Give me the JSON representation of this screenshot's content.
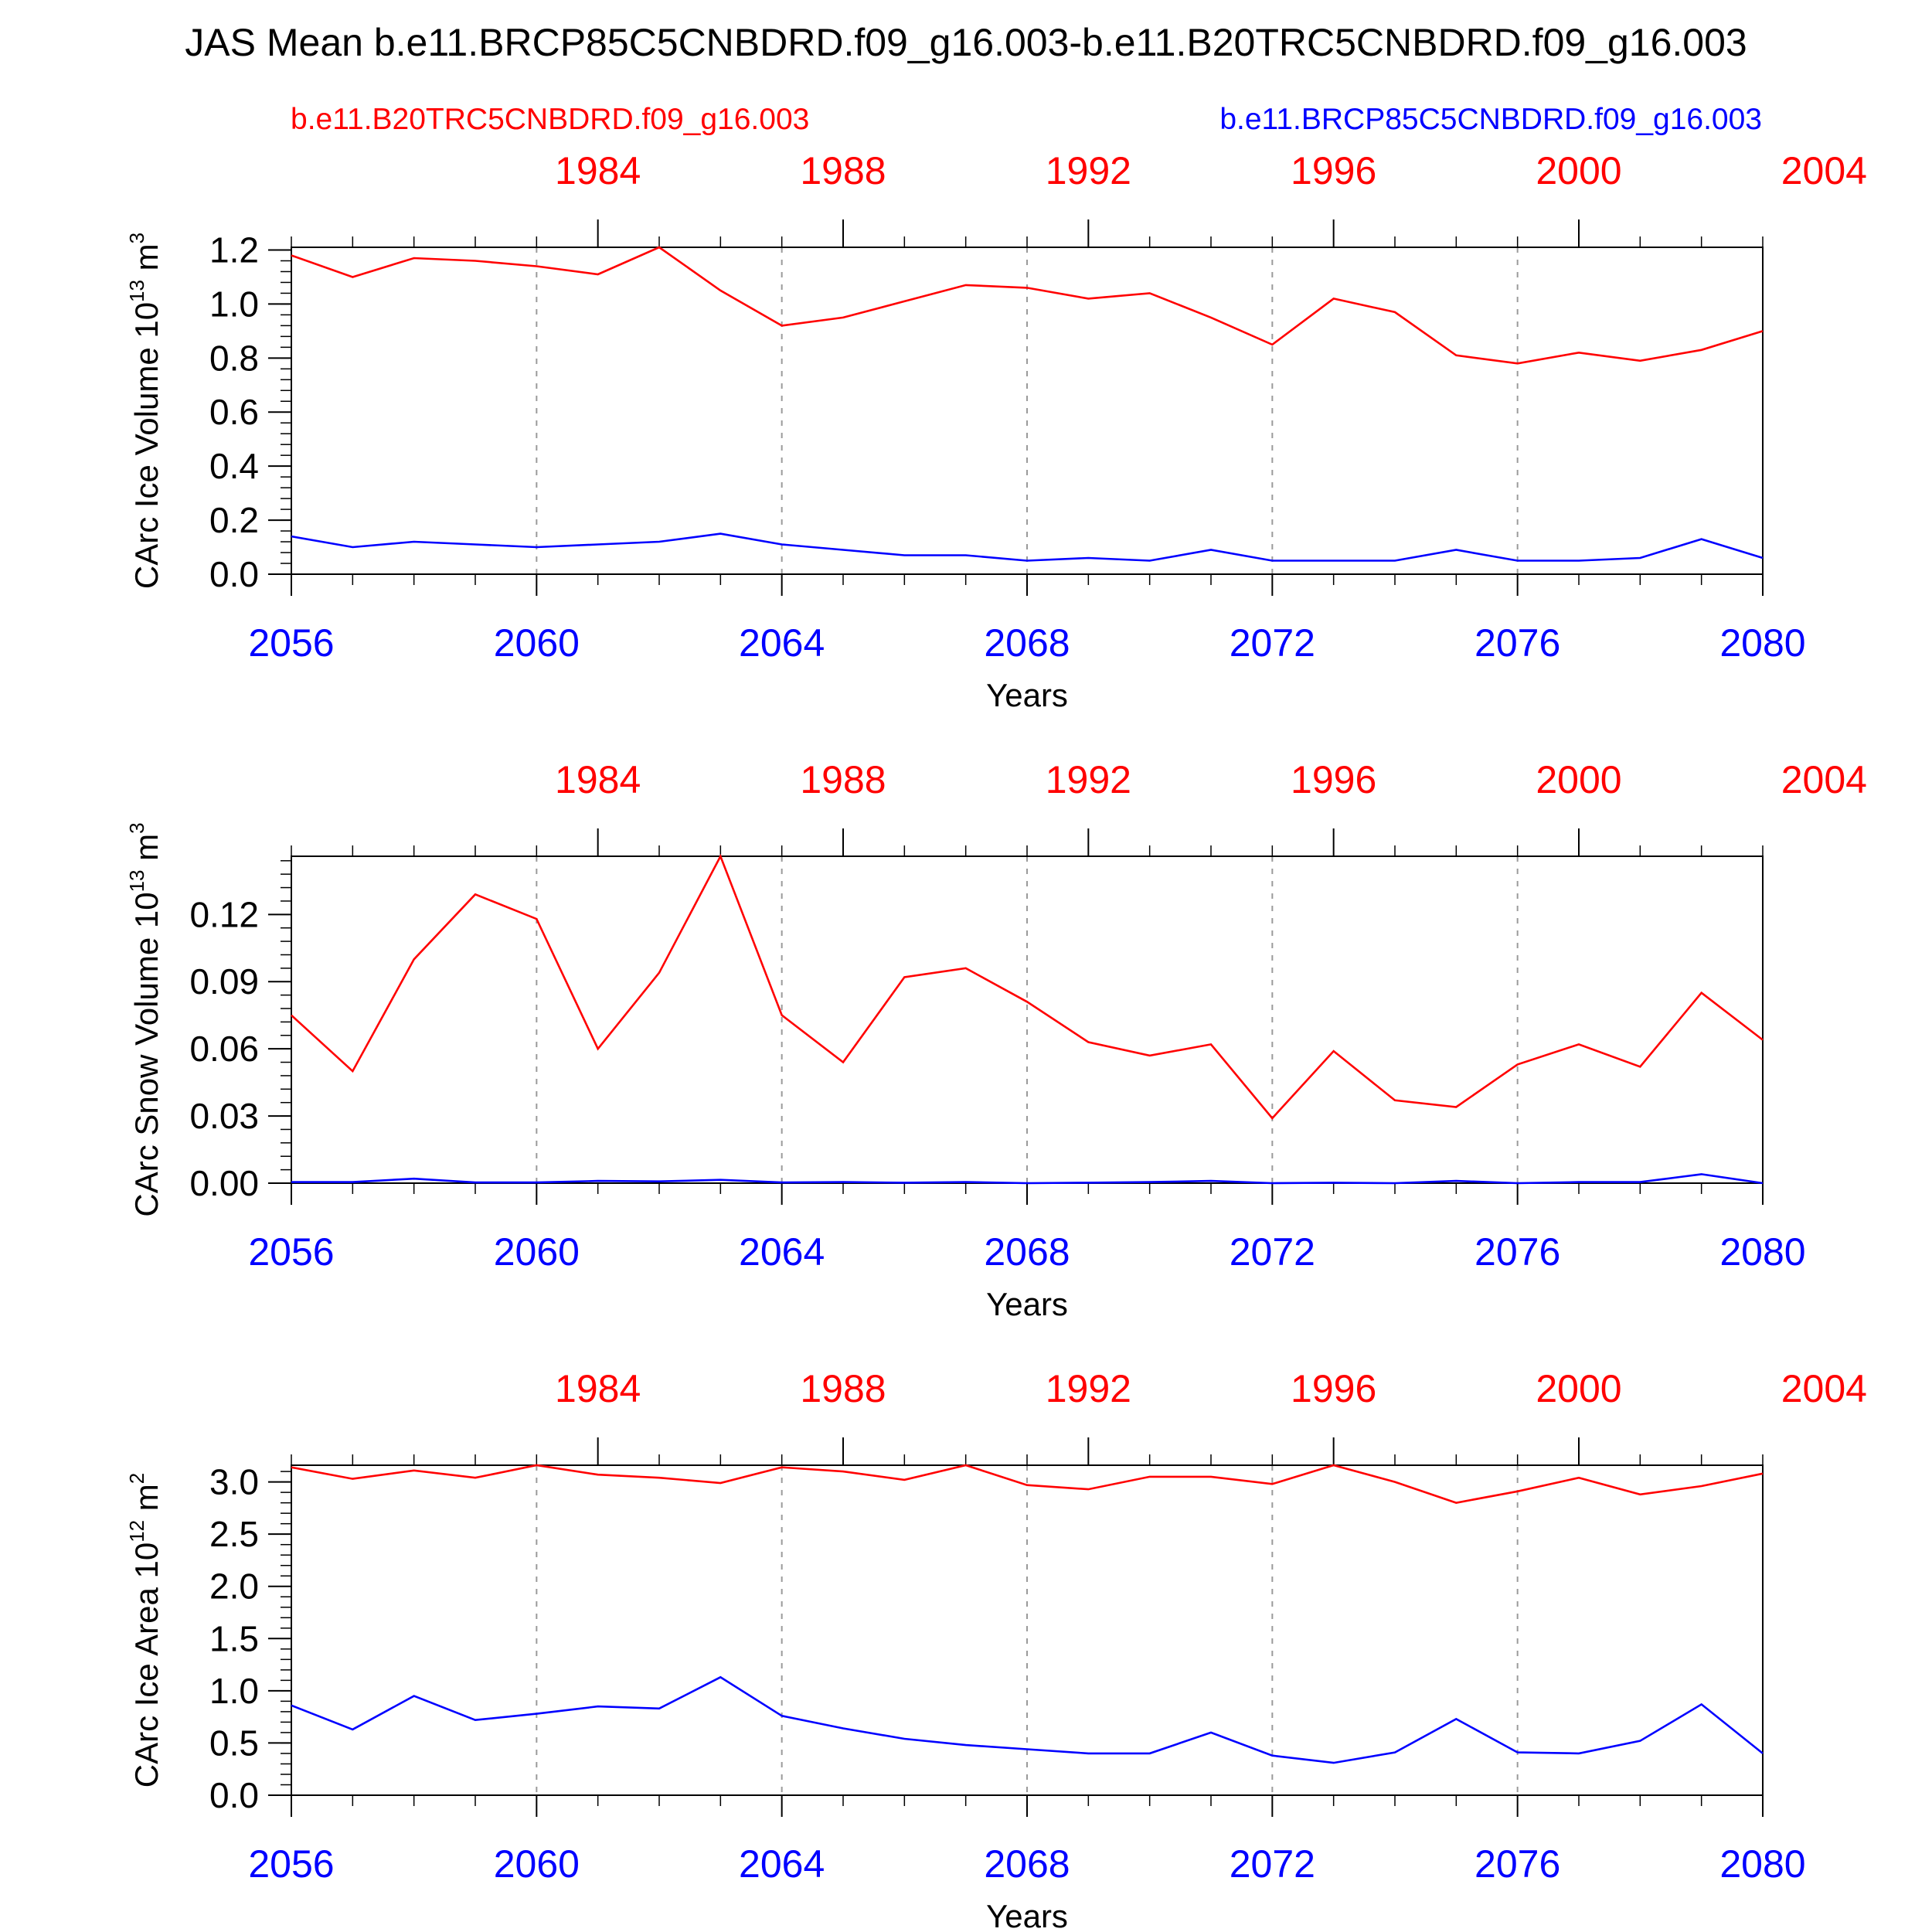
{
  "title": "JAS Mean b.e11.BRCP85C5CNBDRD.f09_g16.003-b.e11.B20TRC5CNBDRD.f09_g16.003",
  "legend": {
    "left": {
      "label": "b.e11.B20TRC5CNBDRD.f09_g16.003",
      "color": "#ff0000"
    },
    "right": {
      "label": "b.e11.BRCP85C5CNBDRD.f09_g16.003",
      "color": "#0000ff"
    }
  },
  "colors": {
    "red": "#ff0000",
    "blue": "#0000ff",
    "axis": "#000000",
    "grid": "#9a9a9a"
  },
  "chart_data": [
    {
      "type": "line",
      "ylabel": "CArc Ice Volume 10",
      "ylabel_exp": "13",
      "ylabel_unit": " m",
      "ylabel_unit_exp": "3",
      "xlabel": "Years",
      "xlim": [
        2056,
        2080
      ],
      "ylim": [
        0,
        1.21
      ],
      "yticks": [
        0.0,
        0.2,
        0.4,
        0.6,
        0.8,
        1.0,
        1.2
      ],
      "yticklabels": [
        "0.0",
        "0.2",
        "0.4",
        "0.6",
        "0.8",
        "1.0",
        "1.2"
      ],
      "yminor_step": 0.04,
      "bottom_ticks": [
        2056,
        2060,
        2064,
        2068,
        2072,
        2076,
        2080
      ],
      "bottom_ticklabels": [
        "2056",
        "2060",
        "2064",
        "2068",
        "2072",
        "2076",
        "2080"
      ],
      "top_ticks": [
        1984,
        1988,
        1992,
        1996,
        2000,
        2004
      ],
      "top_ticklabels": [
        "1984",
        "1988",
        "1992",
        "1996",
        "2000",
        "2004"
      ],
      "top_offset": 77,
      "grid_years": [
        2060,
        2064,
        2068,
        2072,
        2076
      ],
      "x": [
        2056,
        2057,
        2058,
        2059,
        2060,
        2061,
        2062,
        2063,
        2064,
        2065,
        2066,
        2067,
        2068,
        2069,
        2070,
        2071,
        2072,
        2073,
        2074,
        2075,
        2076,
        2077,
        2078,
        2079,
        2080
      ],
      "series": [
        {
          "name": "b.e11.B20TRC5CNBDRD.f09_g16.003",
          "color": "#ff0000",
          "values": [
            1.18,
            1.1,
            1.17,
            1.16,
            1.14,
            1.11,
            1.21,
            1.05,
            0.92,
            0.95,
            1.01,
            1.07,
            1.06,
            1.02,
            1.04,
            0.95,
            0.85,
            1.02,
            0.97,
            0.81,
            0.78,
            0.82,
            0.79,
            0.83,
            0.9
          ]
        },
        {
          "name": "b.e11.BRCP85C5CNBDRD.f09_g16.003",
          "color": "#0000ff",
          "values": [
            0.14,
            0.1,
            0.12,
            0.11,
            0.1,
            0.11,
            0.12,
            0.15,
            0.11,
            0.09,
            0.07,
            0.07,
            0.05,
            0.06,
            0.05,
            0.09,
            0.05,
            0.05,
            0.05,
            0.09,
            0.05,
            0.05,
            0.06,
            0.13,
            0.06
          ]
        }
      ]
    },
    {
      "type": "line",
      "ylabel": "CArc Snow Volume 10",
      "ylabel_exp": "13",
      "ylabel_unit": " m",
      "ylabel_unit_exp": "3",
      "xlabel": "Years",
      "xlim": [
        2056,
        2080
      ],
      "ylim": [
        0,
        0.146
      ],
      "yticks": [
        0.0,
        0.03,
        0.06,
        0.09,
        0.12
      ],
      "yticklabels": [
        "0.00",
        "0.03",
        "0.06",
        "0.09",
        "0.12"
      ],
      "yminor_step": 0.006,
      "bottom_ticks": [
        2056,
        2060,
        2064,
        2068,
        2072,
        2076,
        2080
      ],
      "bottom_ticklabels": [
        "2056",
        "2060",
        "2064",
        "2068",
        "2072",
        "2076",
        "2080"
      ],
      "top_ticks": [
        1984,
        1988,
        1992,
        1996,
        2000,
        2004
      ],
      "top_ticklabels": [
        "1984",
        "1988",
        "1992",
        "1996",
        "2000",
        "2004"
      ],
      "top_offset": 77,
      "grid_years": [
        2060,
        2064,
        2068,
        2072,
        2076
      ],
      "x": [
        2056,
        2057,
        2058,
        2059,
        2060,
        2061,
        2062,
        2063,
        2064,
        2065,
        2066,
        2067,
        2068,
        2069,
        2070,
        2071,
        2072,
        2073,
        2074,
        2075,
        2076,
        2077,
        2078,
        2079,
        2080
      ],
      "series": [
        {
          "name": "b.e11.B20TRC5CNBDRD.f09_g16.003",
          "color": "#ff0000",
          "values": [
            0.075,
            0.05,
            0.1,
            0.129,
            0.118,
            0.06,
            0.094,
            0.146,
            0.075,
            0.054,
            0.092,
            0.096,
            0.081,
            0.063,
            0.057,
            0.062,
            0.029,
            0.059,
            0.037,
            0.034,
            0.053,
            0.062,
            0.052,
            0.085,
            0.064
          ]
        },
        {
          "name": "b.e11.BRCP85C5CNBDRD.f09_g16.003",
          "color": "#0000ff",
          "values": [
            0.0005,
            0.0005,
            0.002,
            0.0003,
            0.0003,
            0.001,
            0.0008,
            0.0015,
            0.0003,
            0.0005,
            0.0002,
            0.0005,
            0.0,
            0.0002,
            0.0005,
            0.001,
            0.0,
            0.0002,
            0.0,
            0.001,
            0.0,
            0.0005,
            0.0005,
            0.004,
            0.0
          ]
        }
      ]
    },
    {
      "type": "line",
      "ylabel": "CArc Ice Area 10",
      "ylabel_exp": "12",
      "ylabel_unit": " m",
      "ylabel_unit_exp": "2",
      "xlabel": "Years",
      "xlim": [
        2056,
        2080
      ],
      "ylim": [
        0,
        3.16
      ],
      "yticks": [
        0.0,
        0.5,
        1.0,
        1.5,
        2.0,
        2.5,
        3.0
      ],
      "yticklabels": [
        "0.0",
        "0.5",
        "1.0",
        "1.5",
        "2.0",
        "2.5",
        "3.0"
      ],
      "yminor_step": 0.1,
      "bottom_ticks": [
        2056,
        2060,
        2064,
        2068,
        2072,
        2076,
        2080
      ],
      "bottom_ticklabels": [
        "2056",
        "2060",
        "2064",
        "2068",
        "2072",
        "2076",
        "2080"
      ],
      "top_ticks": [
        1984,
        1988,
        1992,
        1996,
        2000,
        2004
      ],
      "top_ticklabels": [
        "1984",
        "1988",
        "1992",
        "1996",
        "2000",
        "2004"
      ],
      "top_offset": 77,
      "grid_years": [
        2060,
        2064,
        2068,
        2072,
        2076
      ],
      "x": [
        2056,
        2057,
        2058,
        2059,
        2060,
        2061,
        2062,
        2063,
        2064,
        2065,
        2066,
        2067,
        2068,
        2069,
        2070,
        2071,
        2072,
        2073,
        2074,
        2075,
        2076,
        2077,
        2078,
        2079,
        2080
      ],
      "series": [
        {
          "name": "b.e11.B20TRC5CNBDRD.f09_g16.003",
          "color": "#ff0000",
          "values": [
            3.14,
            3.03,
            3.11,
            3.04,
            3.16,
            3.07,
            3.04,
            2.99,
            3.14,
            3.1,
            3.02,
            3.16,
            2.97,
            2.93,
            3.05,
            3.05,
            2.98,
            3.16,
            3.0,
            2.8,
            2.91,
            3.04,
            2.88,
            2.96,
            3.08
          ]
        },
        {
          "name": "b.e11.BRCP85C5CNBDRD.f09_g16.003",
          "color": "#0000ff",
          "values": [
            0.86,
            0.63,
            0.95,
            0.72,
            0.78,
            0.85,
            0.83,
            1.13,
            0.76,
            0.64,
            0.54,
            0.48,
            0.44,
            0.4,
            0.4,
            0.6,
            0.38,
            0.31,
            0.41,
            0.73,
            0.41,
            0.4,
            0.52,
            0.87,
            0.4
          ]
        }
      ]
    }
  ]
}
